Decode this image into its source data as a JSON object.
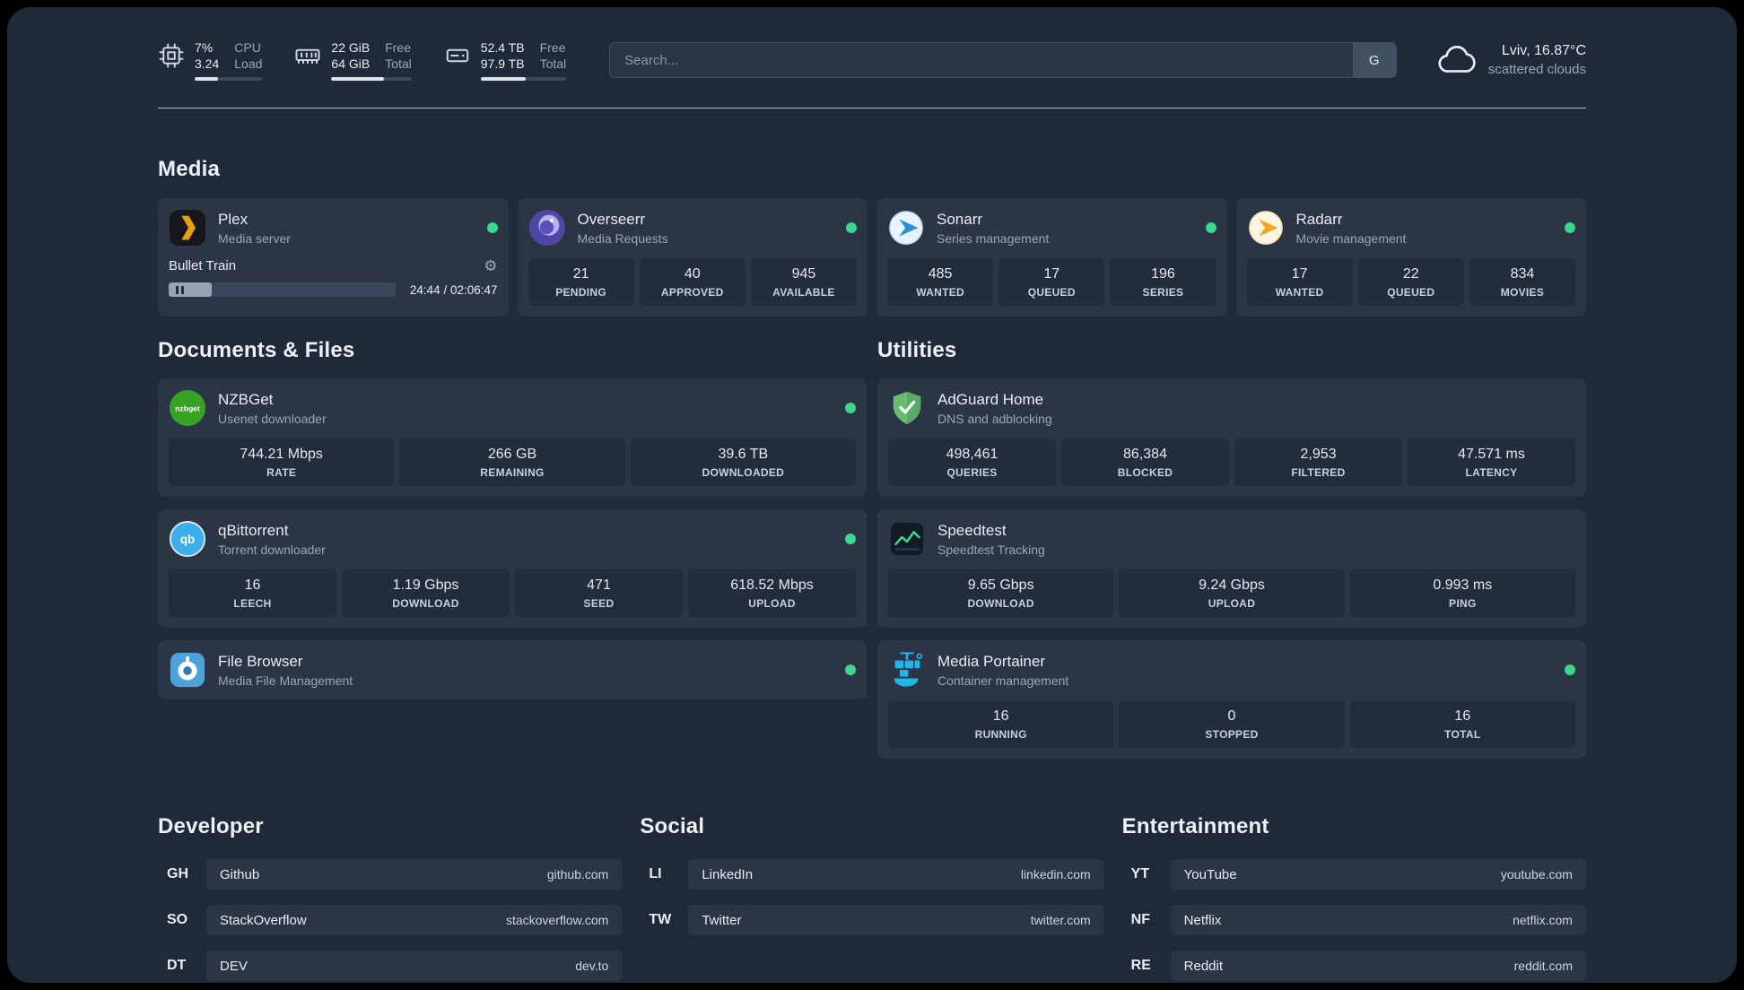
{
  "theme": {
    "background": "#202938",
    "card": "#2b3545",
    "stat_box": "#232c3b",
    "status_green": "#3dd68c",
    "text_primary": "#e9edf3",
    "text_muted": "#9aa5b5"
  },
  "header": {
    "resources": [
      {
        "icon": "cpu-icon",
        "values": [
          "7%",
          "3.24"
        ],
        "labels": [
          "CPU",
          "Load"
        ],
        "progress_pct": 35
      },
      {
        "icon": "ram-icon",
        "values": [
          "22 GiB",
          "64 GiB"
        ],
        "labels": [
          "Free",
          "Total"
        ],
        "progress_pct": 66
      },
      {
        "icon": "disk-icon",
        "values": [
          "52.4 TB",
          "97.9 TB"
        ],
        "labels": [
          "Free",
          "Total"
        ],
        "progress_pct": 53
      }
    ],
    "search": {
      "placeholder": "Search...",
      "provider_label": "G"
    },
    "weather": {
      "icon": "cloud-icon",
      "location": "Lviv, 16.87°C",
      "condition": "scattered clouds"
    }
  },
  "media": {
    "heading": "Media",
    "plex": {
      "title": "Plex",
      "subtitle": "Media server",
      "status": "online",
      "player": {
        "track": "Bullet Train",
        "time": "24:44 / 02:06:47",
        "progress_pct": 19
      }
    },
    "overseerr": {
      "title": "Overseerr",
      "subtitle": "Media Requests",
      "status": "online",
      "stats": [
        {
          "value": "21",
          "label": "PENDING"
        },
        {
          "value": "40",
          "label": "APPROVED"
        },
        {
          "value": "945",
          "label": "AVAILABLE"
        }
      ]
    },
    "sonarr": {
      "title": "Sonarr",
      "subtitle": "Series management",
      "status": "online",
      "stats": [
        {
          "value": "485",
          "label": "WANTED"
        },
        {
          "value": "17",
          "label": "QUEUED"
        },
        {
          "value": "196",
          "label": "SERIES"
        }
      ]
    },
    "radarr": {
      "title": "Radarr",
      "subtitle": "Movie management",
      "status": "online",
      "stats": [
        {
          "value": "17",
          "label": "WANTED"
        },
        {
          "value": "22",
          "label": "QUEUED"
        },
        {
          "value": "834",
          "label": "MOVIES"
        }
      ]
    }
  },
  "documents": {
    "heading": "Documents & Files",
    "nzbget": {
      "title": "NZBGet",
      "subtitle": "Usenet downloader",
      "status": "online",
      "stats": [
        {
          "value": "744.21 Mbps",
          "label": "RATE"
        },
        {
          "value": "266 GB",
          "label": "REMAINING"
        },
        {
          "value": "39.6 TB",
          "label": "DOWNLOADED"
        }
      ]
    },
    "qbittorrent": {
      "title": "qBittorrent",
      "subtitle": "Torrent downloader",
      "status": "online",
      "stats": [
        {
          "value": "16",
          "label": "LEECH"
        },
        {
          "value": "1.19 Gbps",
          "label": "DOWNLOAD"
        },
        {
          "value": "471",
          "label": "SEED"
        },
        {
          "value": "618.52 Mbps",
          "label": "UPLOAD"
        }
      ]
    },
    "filebrowser": {
      "title": "File Browser",
      "subtitle": "Media File Management",
      "status": "online"
    }
  },
  "utilities": {
    "heading": "Utilities",
    "adguard": {
      "title": "AdGuard Home",
      "subtitle": "DNS and adblocking",
      "stats": [
        {
          "value": "498,461",
          "label": "QUERIES"
        },
        {
          "value": "86,384",
          "label": "BLOCKED"
        },
        {
          "value": "2,953",
          "label": "FILTERED"
        },
        {
          "value": "47.571 ms",
          "label": "LATENCY"
        }
      ]
    },
    "speedtest": {
      "title": "Speedtest",
      "subtitle": "Speedtest Tracking",
      "stats": [
        {
          "value": "9.65 Gbps",
          "label": "DOWNLOAD"
        },
        {
          "value": "9.24 Gbps",
          "label": "UPLOAD"
        },
        {
          "value": "0.993 ms",
          "label": "PING"
        }
      ]
    },
    "portainer": {
      "title": "Media Portainer",
      "subtitle": "Container management",
      "status": "online",
      "stats": [
        {
          "value": "16",
          "label": "RUNNING"
        },
        {
          "value": "0",
          "label": "STOPPED"
        },
        {
          "value": "16",
          "label": "TOTAL"
        }
      ]
    }
  },
  "bookmarks": {
    "groups": [
      {
        "title": "Developer",
        "items": [
          {
            "abbr": "GH",
            "name": "Github",
            "url": "github.com"
          },
          {
            "abbr": "SO",
            "name": "StackOverflow",
            "url": "stackoverflow.com"
          },
          {
            "abbr": "DT",
            "name": "DEV",
            "url": "dev.to"
          }
        ]
      },
      {
        "title": "Social",
        "items": [
          {
            "abbr": "LI",
            "name": "LinkedIn",
            "url": "linkedin.com"
          },
          {
            "abbr": "TW",
            "name": "Twitter",
            "url": "twitter.com"
          }
        ]
      },
      {
        "title": "Entertainment",
        "items": [
          {
            "abbr": "YT",
            "name": "YouTube",
            "url": "youtube.com"
          },
          {
            "abbr": "NF",
            "name": "Netflix",
            "url": "netflix.com"
          },
          {
            "abbr": "RE",
            "name": "Reddit",
            "url": "reddit.com"
          }
        ]
      }
    ]
  }
}
